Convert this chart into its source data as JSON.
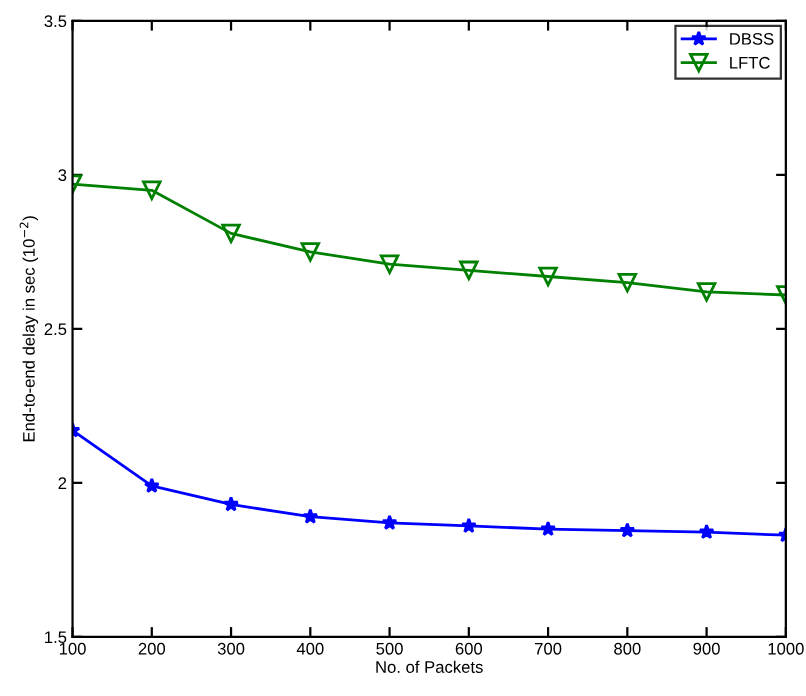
{
  "chart_data": {
    "type": "line",
    "xlabel": "No. of Packets",
    "ylabel": "End-to-end delay in sec (10$^{−2}$)",
    "x": [
      100,
      200,
      300,
      400,
      500,
      600,
      700,
      800,
      900,
      1000
    ],
    "series": [
      {
        "name": "DBSS",
        "color": "#0000ff",
        "marker": "star",
        "values": [
          2.17,
          1.99,
          1.93,
          1.89,
          1.87,
          1.86,
          1.85,
          1.845,
          1.84,
          1.83
        ]
      },
      {
        "name": "LFTC",
        "color": "#008000",
        "marker": "triangle",
        "values": [
          2.97,
          2.95,
          2.81,
          2.75,
          2.71,
          2.69,
          2.67,
          2.65,
          2.62,
          2.61
        ]
      }
    ],
    "xlim": [
      100,
      1000
    ],
    "ylim": [
      1.5,
      3.5
    ],
    "xticks": [
      100,
      200,
      300,
      400,
      500,
      600,
      700,
      800,
      900,
      1000
    ],
    "yticks": [
      1.5,
      2,
      {
        "value": 2.5,
        "label": "2.5"
      },
      3,
      3.5
    ],
    "grid": false,
    "legend": "top right",
    "line_style": "solid"
  }
}
